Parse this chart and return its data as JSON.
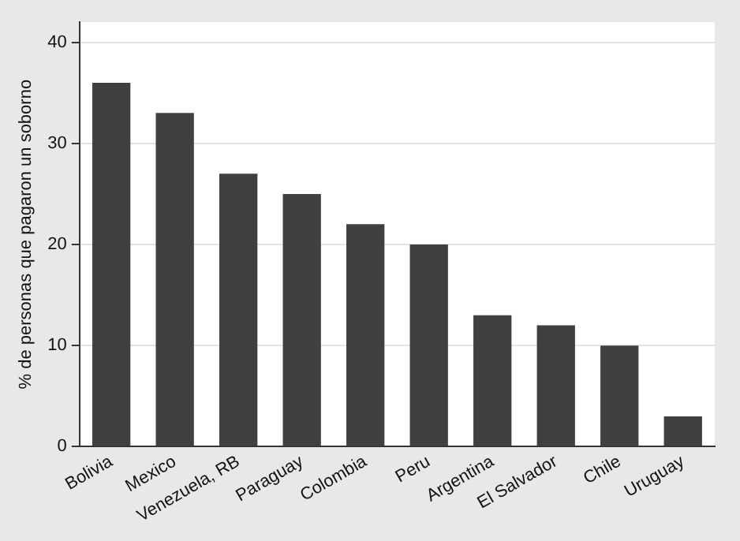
{
  "chart_data": {
    "type": "bar",
    "ylabel": "% de personas que pagaron un soborno",
    "categories": [
      "Bolivia",
      "Mexico",
      "Venezuela, RB",
      "Paraguay",
      "Colombia",
      "Peru",
      "Argentina",
      "El Salvador",
      "Chile",
      "Uruguay"
    ],
    "values": [
      36,
      33,
      27,
      25,
      22,
      20,
      13,
      12,
      10,
      3
    ],
    "color": "#404040",
    "ylim": [
      0,
      42
    ],
    "yticks": [
      0,
      10,
      20,
      30,
      40
    ],
    "grid": "y",
    "legend": false
  }
}
